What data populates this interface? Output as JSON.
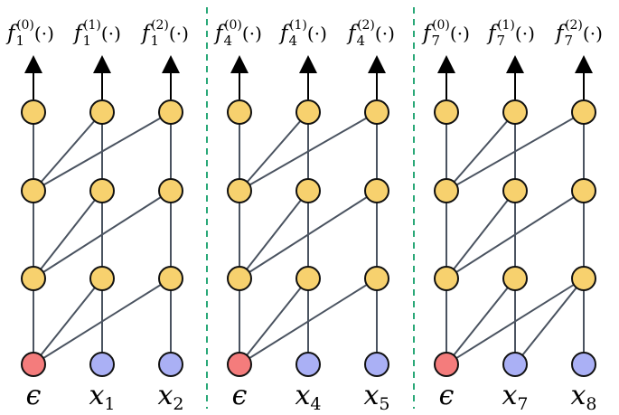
{
  "colors": {
    "hidden": "#f7d16e",
    "epsilon": "#f47c7c",
    "input": "#aab0f5",
    "edge": "#4a5360",
    "divider": "#2aa878"
  },
  "panels": [
    {
      "outputs": [
        {
          "base": "f",
          "sub": "1",
          "sup": "(0)",
          "arg": "(·)"
        },
        {
          "base": "f",
          "sub": "1",
          "sup": "(1)",
          "arg": "(·)"
        },
        {
          "base": "f",
          "sub": "1",
          "sup": "(2)",
          "arg": "(·)"
        }
      ],
      "inputs": [
        {
          "base": "ϵ",
          "sub": "",
          "kind": "epsilon"
        },
        {
          "base": "x",
          "sub": "1",
          "kind": "input"
        },
        {
          "base": "x",
          "sub": "2",
          "kind": "input"
        }
      ],
      "cross_edges": [
        [
          1,
          0,
          0,
          2
        ],
        [
          1,
          0,
          0,
          1
        ],
        [
          2,
          0,
          1,
          2
        ],
        [
          2,
          0,
          1,
          1
        ],
        [
          3,
          0,
          2,
          2
        ],
        [
          3,
          0,
          2,
          1
        ]
      ]
    },
    {
      "outputs": [
        {
          "base": "f",
          "sub": "4",
          "sup": "(0)",
          "arg": "(·)"
        },
        {
          "base": "f",
          "sub": "4",
          "sup": "(1)",
          "arg": "(·)"
        },
        {
          "base": "f",
          "sub": "4",
          "sup": "(2)",
          "arg": "(·)"
        }
      ],
      "inputs": [
        {
          "base": "ϵ",
          "sub": "",
          "kind": "epsilon"
        },
        {
          "base": "x",
          "sub": "4",
          "kind": "input"
        },
        {
          "base": "x",
          "sub": "5",
          "kind": "input"
        }
      ],
      "cross_edges": [
        [
          1,
          0,
          0,
          2
        ],
        [
          1,
          0,
          0,
          1
        ],
        [
          2,
          0,
          1,
          2
        ],
        [
          2,
          0,
          1,
          1
        ],
        [
          3,
          0,
          2,
          2
        ],
        [
          3,
          0,
          2,
          1
        ]
      ]
    },
    {
      "outputs": [
        {
          "base": "f",
          "sub": "7",
          "sup": "(0)",
          "arg": "(·)"
        },
        {
          "base": "f",
          "sub": "7",
          "sup": "(1)",
          "arg": "(·)"
        },
        {
          "base": "f",
          "sub": "7",
          "sup": "(2)",
          "arg": "(·)"
        }
      ],
      "inputs": [
        {
          "base": "ϵ",
          "sub": "",
          "kind": "epsilon"
        },
        {
          "base": "x",
          "sub": "7",
          "kind": "input"
        },
        {
          "base": "x",
          "sub": "8",
          "kind": "input"
        }
      ],
      "cross_edges": [
        [
          1,
          0,
          0,
          2
        ],
        [
          1,
          0,
          0,
          1
        ],
        [
          2,
          0,
          1,
          2
        ],
        [
          2,
          0,
          1,
          1
        ],
        [
          3,
          0,
          2,
          2
        ],
        [
          3,
          0,
          2,
          1
        ],
        [
          3,
          1,
          2,
          2
        ]
      ]
    }
  ]
}
